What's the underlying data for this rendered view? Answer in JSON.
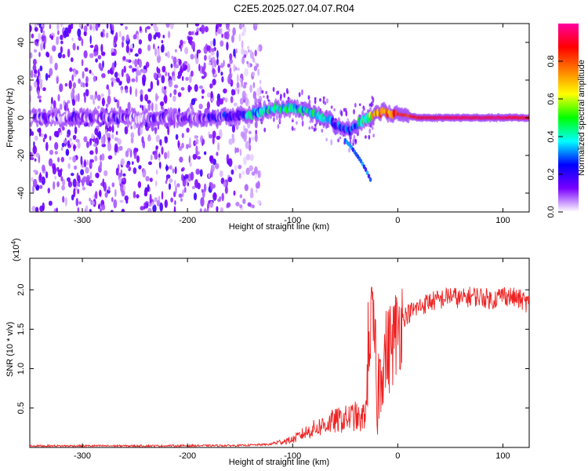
{
  "title": "C2E5.2025.027.04.07.R04",
  "chart_data": [
    {
      "type": "heatmap",
      "xlabel": "Height of straight line (km)",
      "ylabel": "Frequency (Hz)",
      "xlim": [
        -350,
        125
      ],
      "ylim": [
        -50,
        50
      ],
      "x_ticks": [
        -300,
        -200,
        -100,
        0,
        100
      ],
      "y_ticks": [
        -40,
        -20,
        0,
        20,
        40
      ],
      "colorbar": {
        "label": "Normalized spectral amplitude",
        "range": [
          0,
          1
        ],
        "ticks": [
          "0.0",
          "0.2",
          "0.4",
          "0.6",
          "0.8"
        ],
        "colormap": [
          "#ffffff",
          "#7a00ff",
          "#0000ff",
          "#00ffff",
          "#00ff00",
          "#ffff00",
          "#ff7f00",
          "#ff0000",
          "#ff00a0"
        ]
      },
      "ridge": {
        "x": [
          -350,
          -300,
          -250,
          -200,
          -160,
          -140,
          -120,
          -100,
          -90,
          -80,
          -70,
          -60,
          -50,
          -45,
          -40,
          -30,
          -20,
          -10,
          0,
          10,
          20,
          50,
          100,
          125
        ],
        "freq": [
          0,
          0,
          0,
          0,
          1,
          2,
          5,
          5,
          4,
          2,
          0,
          -3,
          -6,
          -7,
          -4,
          0,
          2,
          3,
          2,
          1,
          0,
          0,
          0,
          0
        ],
        "amplitude": [
          0.2,
          0.2,
          0.2,
          0.22,
          0.3,
          0.45,
          0.55,
          0.5,
          0.5,
          0.55,
          0.5,
          0.4,
          0.35,
          0.3,
          0.45,
          0.6,
          0.85,
          0.9,
          0.9,
          0.85,
          0.9,
          0.95,
          0.95,
          0.9
        ]
      },
      "branch": {
        "x": [
          -50,
          -45,
          -40,
          -35,
          -30,
          -25
        ],
        "freq": [
          -12,
          -15,
          -19,
          -23,
          -28,
          -34
        ]
      },
      "noise_region_x": [
        -350,
        -140
      ]
    },
    {
      "type": "line",
      "xlabel": "Height of straight line (km)",
      "ylabel": "SNR (10 * v/v)",
      "y_multiplier": "(x10",
      "y_multiplier_exp": "4",
      "xlim": [
        -350,
        125
      ],
      "ylim": [
        0,
        24000
      ],
      "x_ticks": [
        -300,
        -200,
        -100,
        0,
        100
      ],
      "y_ticks": [
        5000,
        10000,
        15000,
        20000
      ],
      "y_tick_labels": [
        "0.5",
        "1.0",
        "1.5",
        "2.0"
      ],
      "color": "#ee2222",
      "series": [
        {
          "x": [
            -350,
            -300,
            -250,
            -200,
            -150,
            -120,
            -100,
            -90,
            -80,
            -70,
            -60,
            -50,
            -45,
            -40,
            -35,
            -30,
            -28,
            -25,
            -22,
            -20,
            -15,
            -10,
            -5,
            0,
            5,
            10,
            20,
            30,
            40,
            50,
            60,
            70,
            80,
            90,
            100,
            110,
            120,
            125
          ],
          "values": [
            200,
            200,
            200,
            220,
            250,
            400,
            800,
            1400,
            1900,
            2300,
            2700,
            2900,
            3100,
            3200,
            2600,
            4000,
            14000,
            15500,
            14000,
            6000,
            11000,
            12000,
            13500,
            15000,
            16500,
            17000,
            17800,
            18500,
            18700,
            19300,
            18800,
            19200,
            19100,
            18700,
            19400,
            19000,
            18600,
            18200
          ]
        }
      ]
    }
  ]
}
